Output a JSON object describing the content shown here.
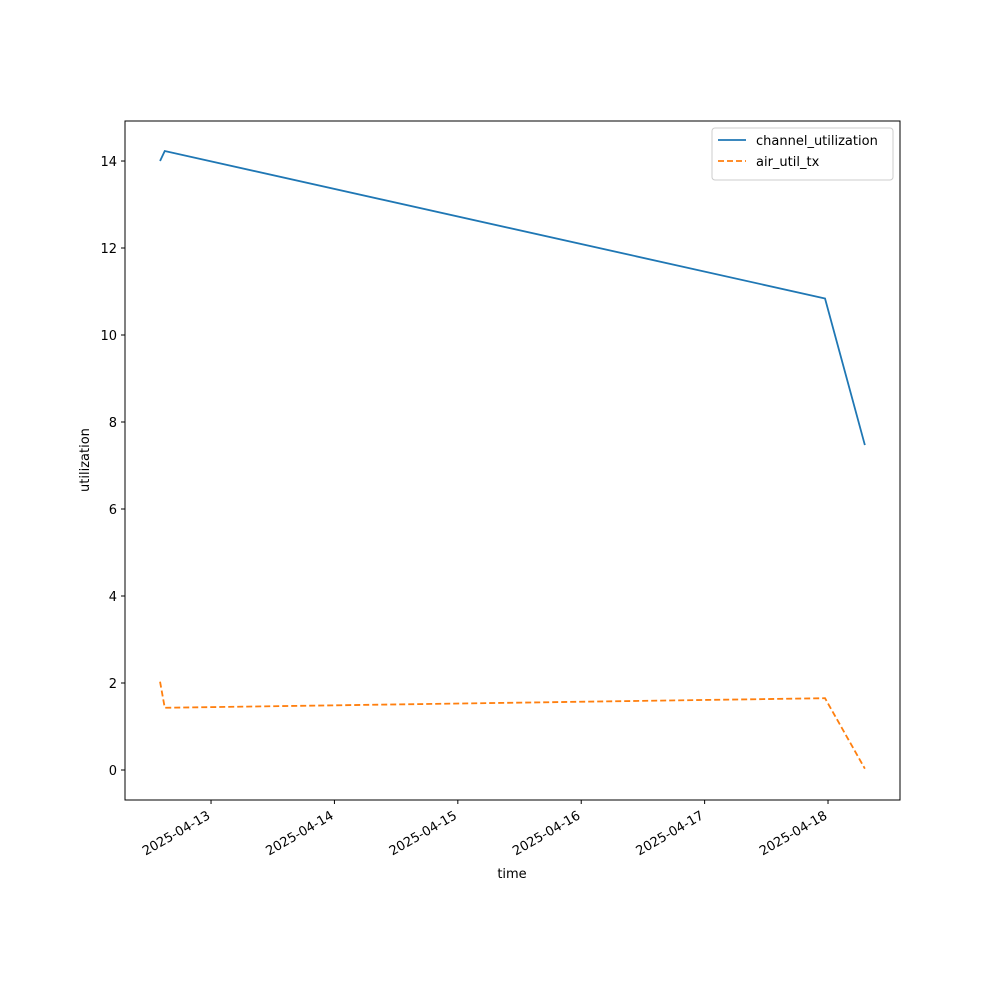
{
  "chart_data": {
    "type": "line",
    "x_label": "time",
    "y_label": "utilization",
    "x": [
      "2025-04-12T14:05",
      "2025-04-12T15:00",
      "2025-04-17T23:25",
      "2025-04-18T07:10"
    ],
    "series": [
      {
        "name": "channel_utilization",
        "color": "#1f77b4",
        "linestyle": "solid",
        "values": [
          14.0,
          14.23,
          10.84,
          7.47
        ]
      },
      {
        "name": "air_util_tx",
        "color": "#ff7f0e",
        "linestyle": "dashed",
        "values": [
          2.03,
          1.43,
          1.65,
          0.03
        ]
      }
    ],
    "xlim": [
      "2025-04-12T07:16",
      "2025-04-18T14:00"
    ],
    "xticks": [
      "2025-04-13",
      "2025-04-14",
      "2025-04-15",
      "2025-04-16",
      "2025-04-17",
      "2025-04-18"
    ],
    "ylim": [
      -0.69,
      14.92
    ],
    "yticks": [
      0,
      2,
      4,
      6,
      8,
      10,
      12,
      14
    ],
    "grid": false,
    "legend": "upper right"
  }
}
